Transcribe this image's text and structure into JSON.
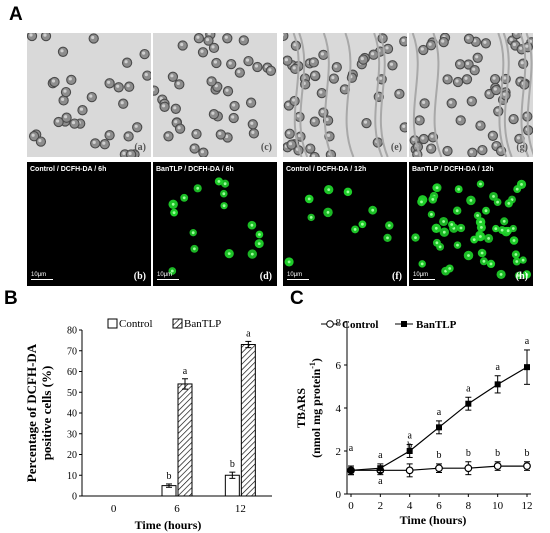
{
  "panels": {
    "a": "A",
    "b": "B",
    "c": "C"
  },
  "micrographs": [
    {
      "tag": "(a)",
      "mode": "bright"
    },
    {
      "tag": "(c)",
      "mode": "bright"
    },
    {
      "tag": "(e)",
      "mode": "bright"
    },
    {
      "tag": "(g)",
      "mode": "bright"
    },
    {
      "tag": "(b)",
      "mode": "fluor",
      "caption": "Control / DCFH-DA / 6h",
      "scale": "10μm",
      "density": 0
    },
    {
      "tag": "(d)",
      "mode": "fluor",
      "caption": "BanTLP / DCFH-DA / 6h",
      "scale": "10μm",
      "density": 16
    },
    {
      "tag": "(f)",
      "mode": "fluor",
      "caption": "Control / DCFH-DA / 12h",
      "scale": "10μm",
      "density": 11
    },
    {
      "tag": "(h)",
      "mode": "fluor",
      "caption": "BanTLP / DCFH-DA / 12h",
      "scale": "10μm",
      "density": 55
    }
  ],
  "chart_data": [
    {
      "type": "bar",
      "ylabel": "Percentage of DCFH-DA positive cells (%)",
      "xlabel": "Time (hours)",
      "categories": [
        "0",
        "6",
        "12"
      ],
      "ylim": [
        0,
        80
      ],
      "yticks": [
        0,
        10,
        20,
        30,
        40,
        50,
        60,
        70,
        80
      ],
      "legend_position": "top",
      "series": [
        {
          "name": "Control",
          "values": [
            0,
            5,
            10
          ],
          "errors": [
            0,
            0.8,
            1.5
          ],
          "letters": [
            "",
            "b",
            "b"
          ],
          "fill": "open"
        },
        {
          "name": "BanTLP",
          "values": [
            0,
            54,
            73
          ],
          "errors": [
            0,
            2.5,
            1.5
          ],
          "letters": [
            "",
            "a",
            "a"
          ],
          "fill": "hatched"
        }
      ]
    },
    {
      "type": "line",
      "ylabel_line1": "TBARS",
      "ylabel_line2": "(nmol mg protein",
      "ylabel_sup": "-1",
      "ylabel_close": ")",
      "xlabel": "Time (hours)",
      "x": [
        0,
        2,
        4,
        6,
        8,
        10,
        12
      ],
      "xlim": [
        0,
        12
      ],
      "ylim": [
        0,
        8
      ],
      "yticks": [
        0,
        2,
        4,
        6,
        8
      ],
      "legend_position": "top",
      "series": [
        {
          "name": "Control",
          "marker": "open-circle",
          "values": [
            1.1,
            1.1,
            1.1,
            1.2,
            1.2,
            1.3,
            1.3
          ],
          "errors": [
            0.2,
            0.2,
            0.3,
            0.2,
            0.3,
            0.2,
            0.2
          ],
          "letters": [
            "a",
            "a",
            "b",
            "b",
            "b",
            "b",
            "b"
          ]
        },
        {
          "name": "BanTLP",
          "marker": "filled-square",
          "values": [
            1.1,
            1.2,
            2.0,
            3.1,
            4.2,
            5.1,
            5.9
          ],
          "errors": [
            0.2,
            0.2,
            0.3,
            0.3,
            0.3,
            0.4,
            0.8
          ],
          "letters": [
            "a",
            "a",
            "a",
            "a",
            "a",
            "a",
            "a"
          ]
        }
      ]
    }
  ]
}
